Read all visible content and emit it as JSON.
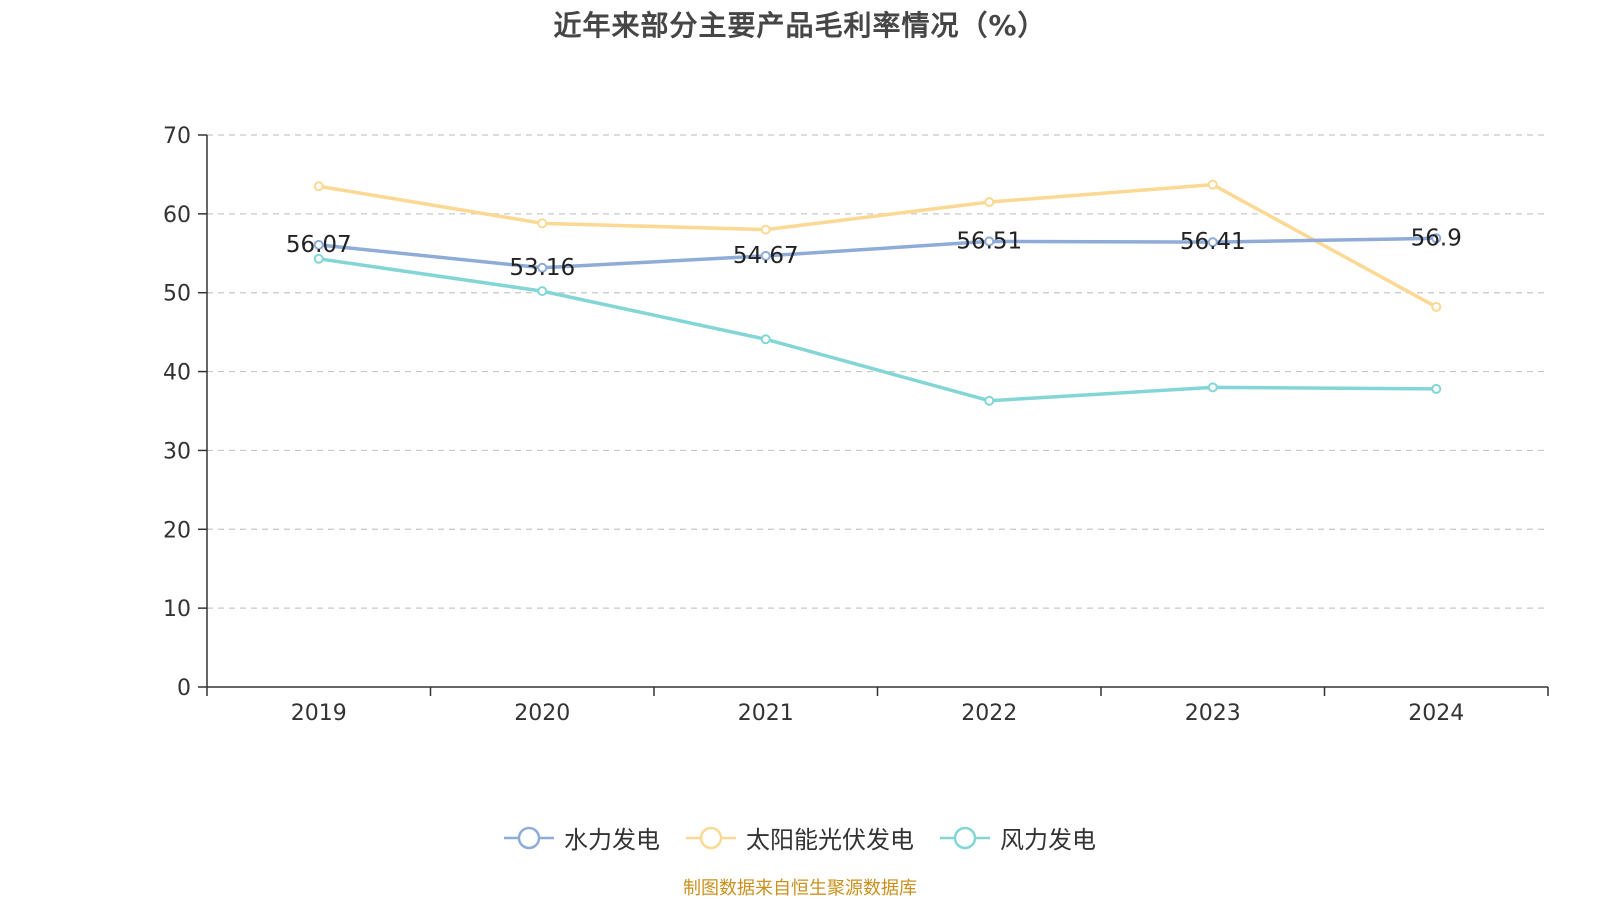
{
  "title": "近年来部分主要产品毛利率情况（%）",
  "source_note": "制图数据来自恒生聚源数据库",
  "colors": {
    "axis": "#333333",
    "grid": "#c8c8c8",
    "label": "#333333"
  },
  "chart_data": {
    "type": "line",
    "title": "近年来部分主要产品毛利率情况（%）",
    "xlabel": "",
    "ylabel": "",
    "ylim": [
      0,
      70
    ],
    "yticks": [
      "0",
      "10",
      "20",
      "30",
      "40",
      "50",
      "60",
      "70"
    ],
    "categories": [
      "2019",
      "2020",
      "2021",
      "2022",
      "2023",
      "2024"
    ],
    "grid": true,
    "legend_position": "bottom-center",
    "series": [
      {
        "name": "水力发电",
        "color": "#8eacd7",
        "values": [
          56.07,
          53.16,
          54.67,
          56.51,
          56.41,
          56.9
        ],
        "labels": [
          "56.07",
          "53.16",
          "54.67",
          "56.51",
          "56.41",
          "56.9"
        ],
        "show_labels": true
      },
      {
        "name": "太阳能光伏发电",
        "color": "#fbd893",
        "values": [
          63.5,
          58.8,
          58.0,
          61.5,
          63.7,
          48.2
        ],
        "show_labels": false
      },
      {
        "name": "风力发电",
        "color": "#84d6d6",
        "values": [
          54.3,
          50.2,
          44.1,
          36.3,
          38.0,
          37.8
        ],
        "show_labels": false
      }
    ]
  }
}
